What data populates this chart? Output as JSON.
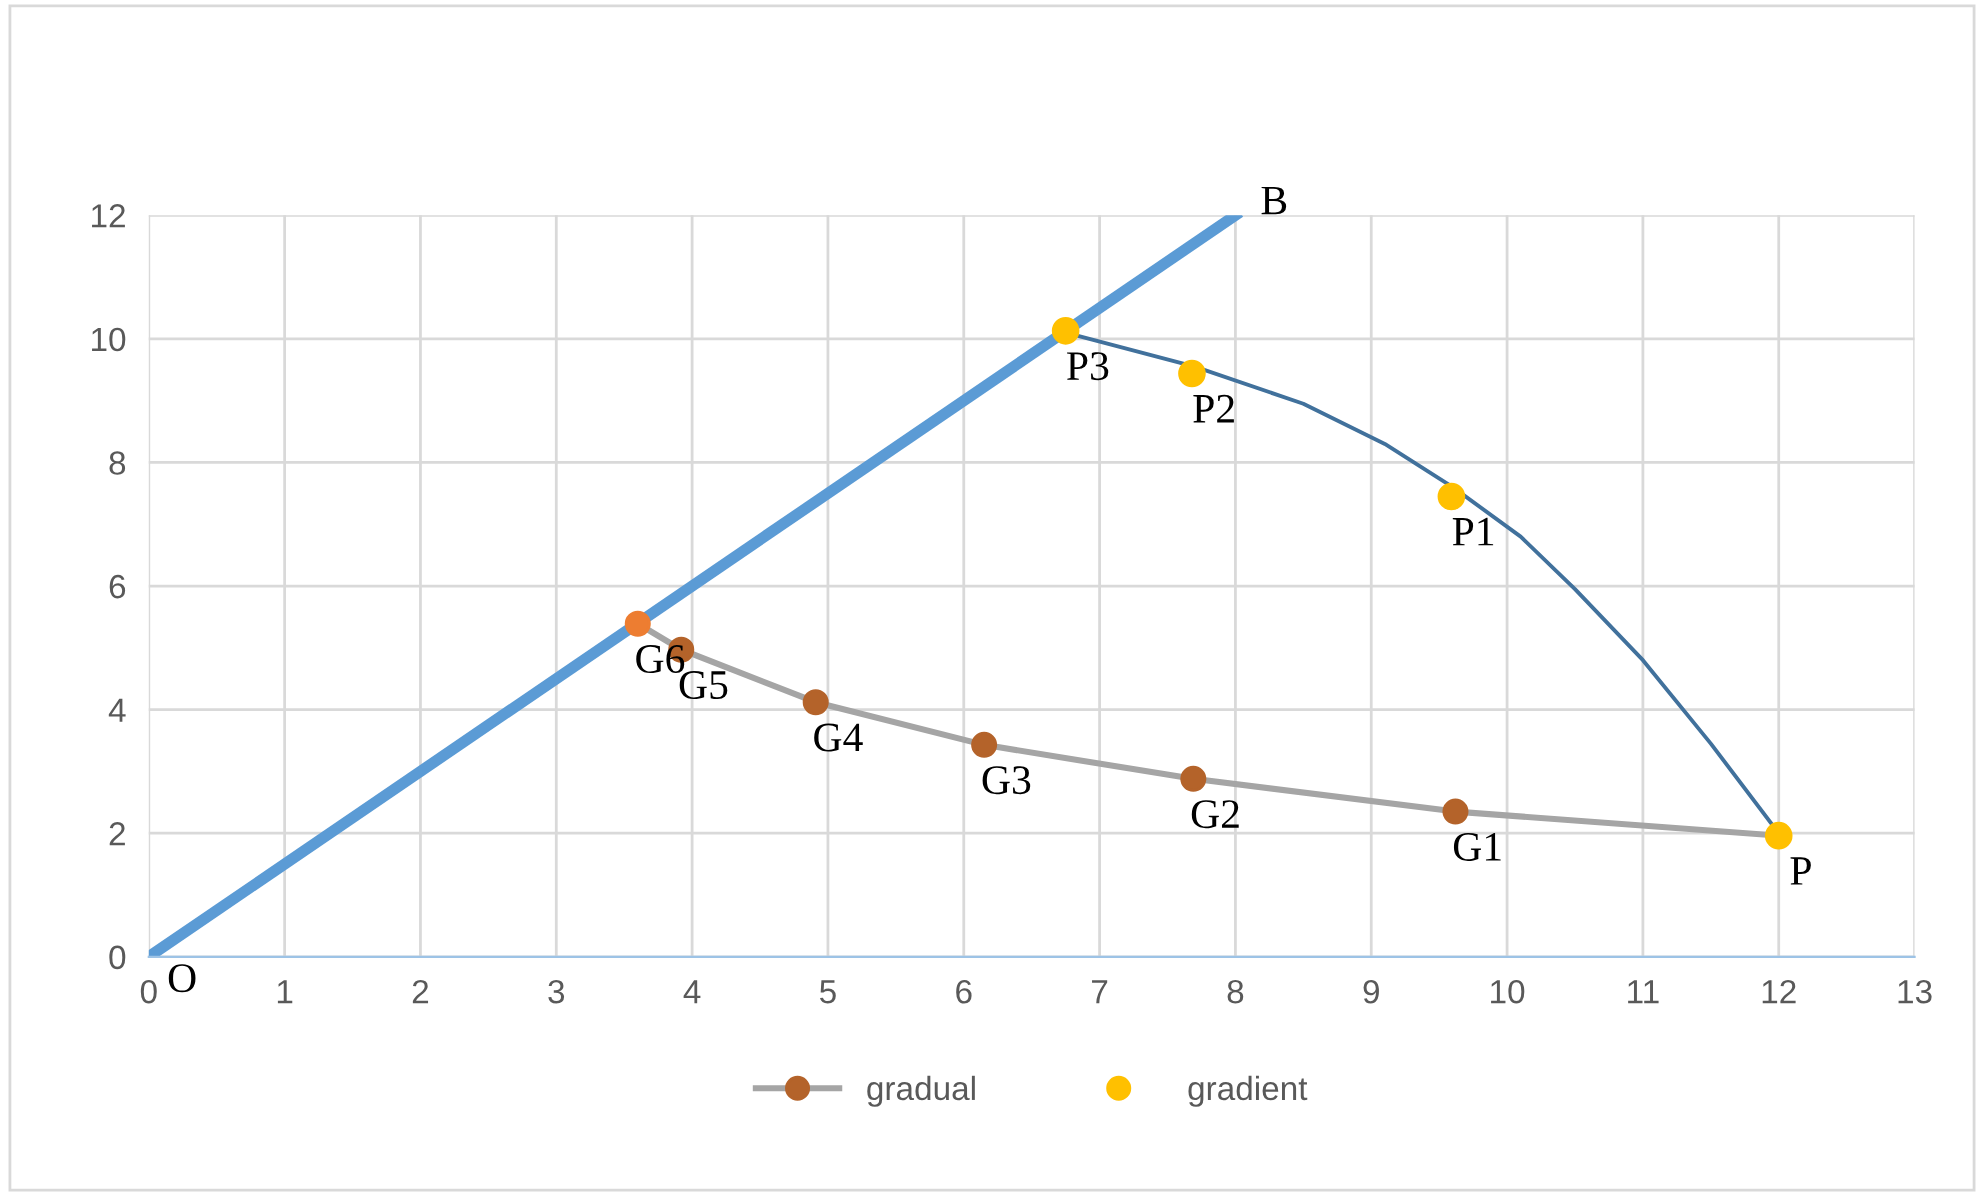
{
  "chart_data": {
    "type": "line",
    "series": [
      {
        "color": "#5b9bd5",
        "x": [
          0,
          8
        ],
        "values": [
          0,
          12
        ],
        "marker": "none"
      },
      {
        "type": "line",
        "color": "#41719c",
        "x": [
          6.75,
          7.7,
          8.5,
          9.1,
          9.6,
          10.1,
          10.5,
          11.0,
          11.5,
          12.0
        ],
        "values": [
          10.1,
          9.55,
          8.95,
          8.3,
          7.6,
          6.8,
          5.95,
          4.8,
          3.45,
          2.0
        ],
        "marker": "none"
      },
      {
        "name": "gradual",
        "type": "line",
        "color": "#a5a5a5",
        "colors": [
          "#ed7d31",
          "#b4632a",
          "#b4632a",
          "#b4632a",
          "#b4632a",
          "#b4632a",
          "#b4632a"
        ],
        "x": [
          3.6,
          3.92,
          4.91,
          6.15,
          7.69,
          9.62,
          12.0
        ],
        "values": [
          5.39,
          4.97,
          4.12,
          3.43,
          2.88,
          2.35,
          1.96
        ],
        "marker": "circle"
      },
      {
        "name": "gradient",
        "type": "scatter",
        "color": "#ffc000",
        "x": [
          12.0,
          9.59,
          7.68,
          6.75
        ],
        "values": [
          1.96,
          7.45,
          9.44,
          10.13
        ],
        "marker": "circle"
      }
    ],
    "annotations": [
      {
        "text": "O",
        "x": 0,
        "y": 0
      },
      {
        "text": "B",
        "x": 8,
        "y": 12
      },
      {
        "text": "P",
        "x": 12.0,
        "y": 1.96
      },
      {
        "text": "P1",
        "x": 9.59,
        "y": 7.45
      },
      {
        "text": "P2",
        "x": 7.68,
        "y": 9.44
      },
      {
        "text": "P3",
        "x": 6.75,
        "y": 10.13
      },
      {
        "text": "G1",
        "x": 9.62,
        "y": 2.35
      },
      {
        "text": "G2",
        "x": 7.69,
        "y": 2.88
      },
      {
        "text": "G3",
        "x": 6.15,
        "y": 3.43
      },
      {
        "text": "G4",
        "x": 4.91,
        "y": 4.12
      },
      {
        "text": "G5",
        "x": 3.92,
        "y": 4.97
      },
      {
        "text": "G6",
        "x": 3.6,
        "y": 5.39
      }
    ],
    "xlim": [
      0,
      13
    ],
    "xticks": [
      0,
      1,
      2,
      3,
      4,
      5,
      6,
      7,
      8,
      9,
      10,
      11,
      12,
      13
    ],
    "ylim": [
      0,
      12
    ],
    "yticks": [
      0,
      2,
      4,
      6,
      8,
      10,
      12
    ],
    "grid": true,
    "legend": "bottom"
  }
}
